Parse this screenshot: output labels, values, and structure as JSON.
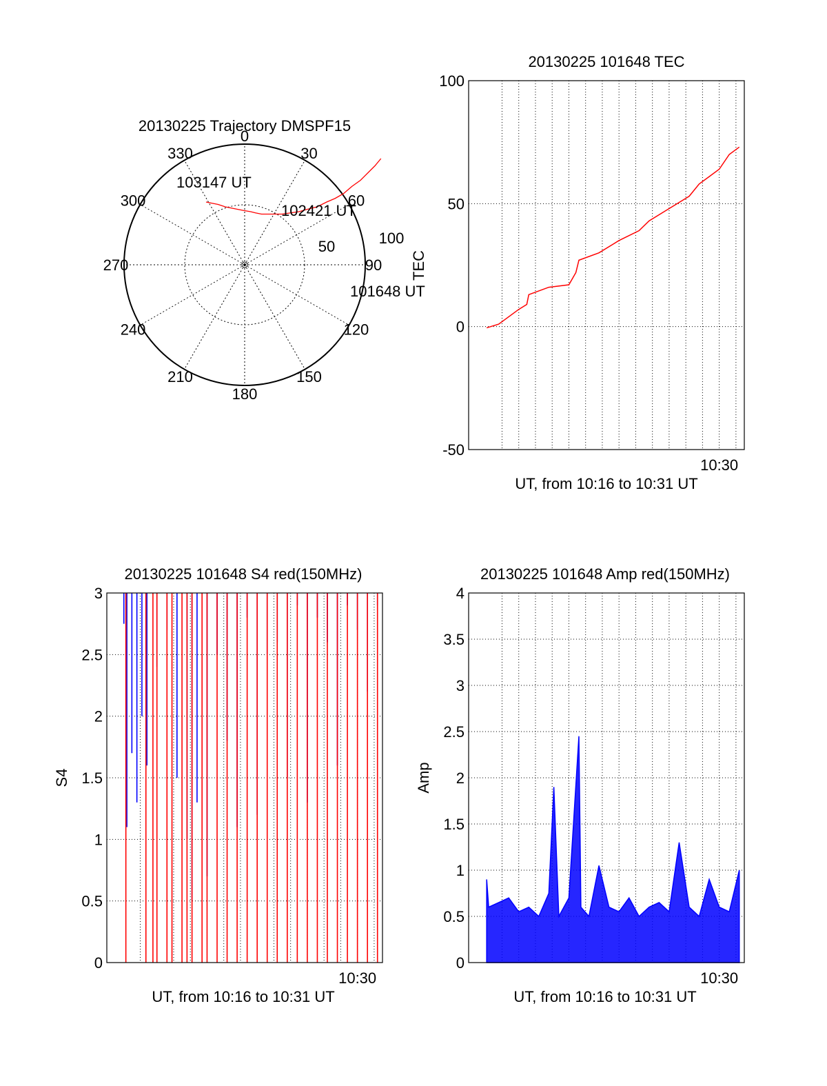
{
  "colors": {
    "trace_red": "#ff0000",
    "trace_blue": "#0000ff",
    "axis": "#000000",
    "grid": "#000000"
  },
  "polar": {
    "title": "20130225 Trajectory DMSPF15",
    "angle_labels": [
      "0",
      "30",
      "60",
      "90",
      "120",
      "150",
      "180",
      "210",
      "240",
      "270",
      "300",
      "330"
    ],
    "radius_labels": [
      "50",
      "100"
    ],
    "track": {
      "from_time": "101648 UT",
      "mid_time": "102421 UT",
      "to_time": "103147 UT",
      "points": [
        [
          113,
          88
        ],
        [
          108,
          82
        ],
        [
          102,
          76
        ],
        [
          96,
          70
        ],
        [
          89,
          65
        ],
        [
          82,
          59
        ],
        [
          75,
          55
        ],
        [
          68,
          52
        ],
        [
          60,
          48
        ],
        [
          52,
          46
        ],
        [
          45,
          44
        ],
        [
          38,
          43
        ],
        [
          31,
          42
        ],
        [
          25,
          42
        ],
        [
          19,
          42
        ],
        [
          14,
          42
        ],
        [
          9,
          43
        ],
        [
          5,
          44
        ],
        [
          -1,
          45
        ],
        [
          -6,
          46
        ],
        [
          -11,
          47
        ],
        [
          -16,
          48
        ],
        [
          -22,
          50
        ],
        [
          -27,
          51
        ],
        [
          -32,
          52
        ]
      ]
    }
  },
  "chart_data": [
    {
      "type": "line",
      "title": "20130225 101648 TEC",
      "xlabel": "UT, from 10:16 to 10:31 UT",
      "ylabel": "TEC",
      "xlim": [
        10.25,
        10.525
      ],
      "ylim": [
        -50,
        100
      ],
      "yticks": [
        -50,
        0,
        50,
        100
      ],
      "xticks": [
        {
          "value": 10.5,
          "label": "10:30"
        }
      ],
      "grid": true,
      "series": [
        {
          "color": "red",
          "x": [
            10.268,
            10.28,
            10.3,
            10.308,
            10.31,
            10.33,
            10.35,
            10.357,
            10.36,
            10.38,
            10.4,
            10.42,
            10.43,
            10.45,
            10.47,
            10.48,
            10.49,
            10.5,
            10.51,
            10.52
          ],
          "y": [
            -0.5,
            1,
            7,
            9,
            13,
            16,
            17,
            22,
            27,
            30,
            35,
            39,
            43,
            48,
            53,
            58,
            61,
            64,
            70,
            73
          ]
        }
      ]
    },
    {
      "type": "line",
      "title": "20130225 101648 S4 red(150MHz)",
      "xlabel": "UT, from 10:16 to 10:31 UT",
      "ylabel": "S4",
      "xlim": [
        10.25,
        10.525
      ],
      "ylim": [
        0,
        3
      ],
      "yticks": [
        0,
        0.5,
        1,
        1.5,
        2,
        2.5,
        3
      ],
      "xticks": [
        {
          "value": 10.5,
          "label": "10:30"
        }
      ],
      "grid": true,
      "series": [
        {
          "color": "blue",
          "x": [
            10.267,
            10.27,
            10.275,
            10.28,
            10.285,
            10.29,
            10.3,
            10.31,
            10.32,
            10.33,
            10.335,
            10.34,
            10.35,
            10.36,
            10.37,
            10.38,
            10.39,
            10.4,
            10.41,
            10.42,
            10.43,
            10.44,
            10.45,
            10.46,
            10.47,
            10.48,
            10.49,
            10.5,
            10.51,
            10.52
          ],
          "y": [
            2.75,
            1.1,
            1.7,
            1.3,
            2.0,
            1.6,
            2.4,
            2.7,
            1.5,
            1.0,
            0.5,
            1.3,
            0.7,
            2.5,
            1.8,
            1.1,
            2.8,
            1.2,
            2.5,
            2.6,
            1.5,
            2.9,
            1.3,
            2.8,
            2.6,
            1.6,
            2.9,
            2.7,
            2.2,
            2.9
          ]
        },
        {
          "color": "red",
          "x": [
            10.269,
            10.289,
            10.296,
            10.3,
            10.31,
            10.315,
            10.325,
            10.33,
            10.335,
            10.345,
            10.35,
            10.36,
            10.37,
            10.38,
            10.39,
            10.4,
            10.41,
            10.42,
            10.43,
            10.44,
            10.45,
            10.46,
            10.47,
            10.48,
            10.49,
            10.5,
            10.51,
            10.52
          ],
          "y": [
            3,
            3,
            3,
            3,
            3,
            3,
            3,
            3,
            3,
            3,
            3,
            3,
            3,
            3,
            3,
            3,
            3,
            3,
            3,
            3,
            3,
            3,
            3,
            3,
            3,
            3,
            3,
            3
          ]
        }
      ]
    },
    {
      "type": "line",
      "title": "20130225 101648 Amp red(150MHz)",
      "xlabel": "UT, from 10:16 to 10:31 UT",
      "ylabel": "Amp",
      "xlim": [
        10.25,
        10.525
      ],
      "ylim": [
        0,
        4
      ],
      "yticks": [
        0,
        0.5,
        1,
        1.5,
        2,
        2.5,
        3,
        3.5,
        4
      ],
      "xticks": [
        {
          "value": 10.5,
          "label": "10:30"
        }
      ],
      "grid": true,
      "series": [
        {
          "color": "blue",
          "x": [
            10.268,
            10.27,
            10.28,
            10.29,
            10.3,
            10.31,
            10.32,
            10.33,
            10.335,
            10.34,
            10.35,
            10.36,
            10.362,
            10.37,
            10.38,
            10.39,
            10.4,
            10.41,
            10.42,
            10.43,
            10.44,
            10.45,
            10.46,
            10.47,
            10.48,
            10.49,
            10.5,
            10.51,
            10.52
          ],
          "y": [
            0.9,
            0.6,
            0.65,
            0.7,
            0.55,
            0.6,
            0.5,
            0.75,
            1.9,
            0.5,
            0.7,
            2.45,
            0.6,
            0.5,
            1.05,
            0.6,
            0.55,
            0.7,
            0.5,
            0.6,
            0.65,
            0.55,
            1.3,
            0.6,
            0.5,
            0.9,
            0.6,
            0.55,
            1.0
          ]
        }
      ]
    }
  ]
}
